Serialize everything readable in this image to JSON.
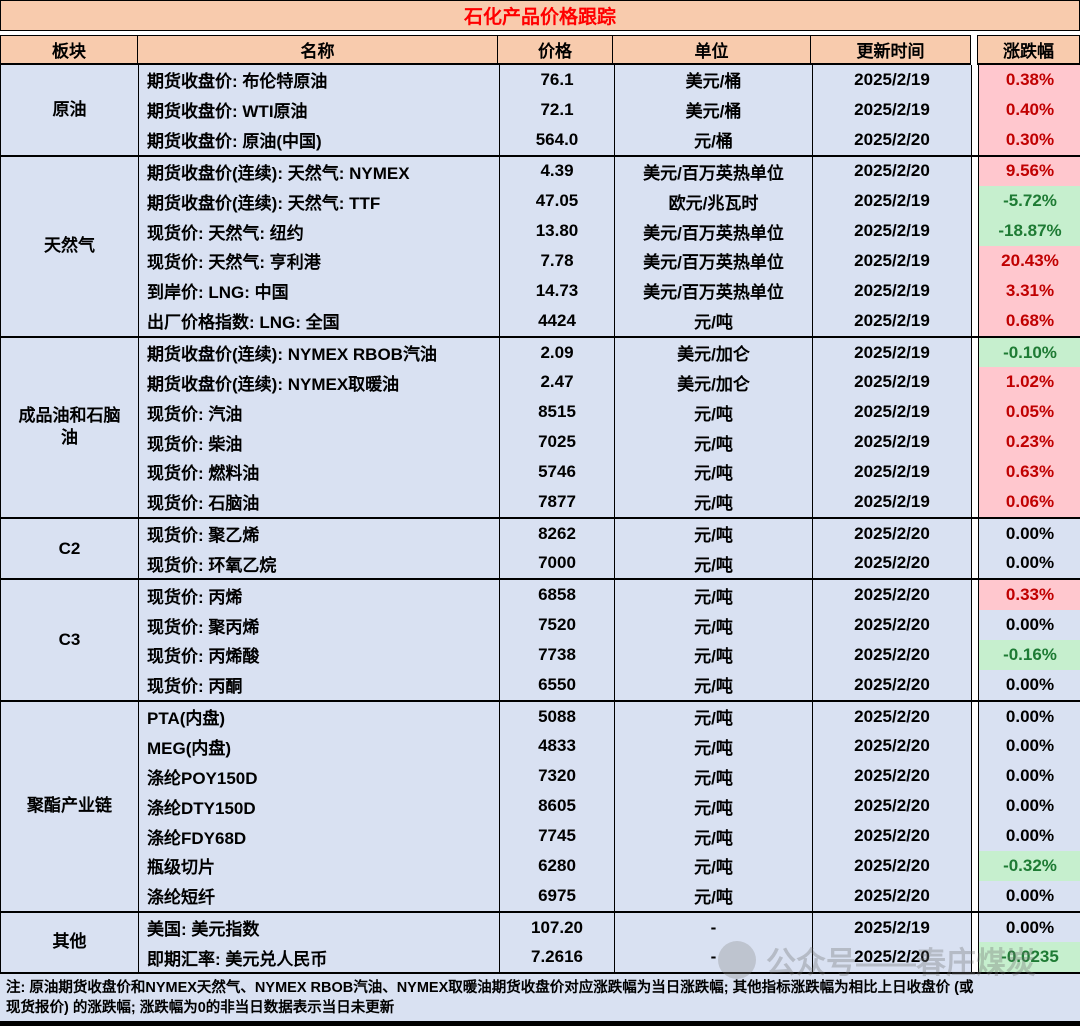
{
  "title": "石化产品价格跟踪",
  "columns": [
    "板块",
    "名称",
    "价格",
    "单位",
    "更新时间",
    "涨跌幅"
  ],
  "sections": [
    {
      "sector": "原油",
      "rows": [
        {
          "name": "期货收盘价: 布伦特原油",
          "price": "76.1",
          "unit": "美元/桶",
          "date": "2025/2/19",
          "change": "0.38%",
          "trend": "up"
        },
        {
          "name": "期货收盘价: WTI原油",
          "price": "72.1",
          "unit": "美元/桶",
          "date": "2025/2/19",
          "change": "0.40%",
          "trend": "up"
        },
        {
          "name": "期货收盘价: 原油(中国)",
          "price": "564.0",
          "unit": "元/桶",
          "date": "2025/2/20",
          "change": "0.30%",
          "trend": "up"
        }
      ]
    },
    {
      "sector": "天然气",
      "rows": [
        {
          "name": "期货收盘价(连续): 天然气: NYMEX",
          "price": "4.39",
          "unit": "美元/百万英热单位",
          "date": "2025/2/20",
          "change": "9.56%",
          "trend": "up"
        },
        {
          "name": "期货收盘价(连续): 天然气: TTF",
          "price": "47.05",
          "unit": "欧元/兆瓦时",
          "date": "2025/2/19",
          "change": "-5.72%",
          "trend": "down"
        },
        {
          "name": "现货价: 天然气: 纽约",
          "price": "13.80",
          "unit": "美元/百万英热单位",
          "date": "2025/2/19",
          "change": "-18.87%",
          "trend": "down"
        },
        {
          "name": "现货价: 天然气: 亨利港",
          "price": "7.78",
          "unit": "美元/百万英热单位",
          "date": "2025/2/19",
          "change": "20.43%",
          "trend": "up"
        },
        {
          "name": "到岸价: LNG: 中国",
          "price": "14.73",
          "unit": "美元/百万英热单位",
          "date": "2025/2/19",
          "change": "3.31%",
          "trend": "up"
        },
        {
          "name": "出厂价格指数: LNG: 全国",
          "price": "4424",
          "unit": "元/吨",
          "date": "2025/2/19",
          "change": "0.68%",
          "trend": "up"
        }
      ]
    },
    {
      "sector": "成品油和石脑油",
      "rows": [
        {
          "name": "期货收盘价(连续): NYMEX RBOB汽油",
          "price": "2.09",
          "unit": "美元/加仑",
          "date": "2025/2/19",
          "change": "-0.10%",
          "trend": "down"
        },
        {
          "name": "期货收盘价(连续): NYMEX取暖油",
          "price": "2.47",
          "unit": "美元/加仑",
          "date": "2025/2/19",
          "change": "1.02%",
          "trend": "up"
        },
        {
          "name": "现货价: 汽油",
          "price": "8515",
          "unit": "元/吨",
          "date": "2025/2/19",
          "change": "0.05%",
          "trend": "up"
        },
        {
          "name": "现货价: 柴油",
          "price": "7025",
          "unit": "元/吨",
          "date": "2025/2/19",
          "change": "0.23%",
          "trend": "up"
        },
        {
          "name": "现货价: 燃料油",
          "price": "5746",
          "unit": "元/吨",
          "date": "2025/2/19",
          "change": "0.63%",
          "trend": "up"
        },
        {
          "name": "现货价: 石脑油",
          "price": "7877",
          "unit": "元/吨",
          "date": "2025/2/19",
          "change": "0.06%",
          "trend": "up"
        }
      ]
    },
    {
      "sector": "C2",
      "rows": [
        {
          "name": "现货价: 聚乙烯",
          "price": "8262",
          "unit": "元/吨",
          "date": "2025/2/20",
          "change": "0.00%",
          "trend": "flat"
        },
        {
          "name": "现货价: 环氧乙烷",
          "price": "7000",
          "unit": "元/吨",
          "date": "2025/2/20",
          "change": "0.00%",
          "trend": "flat"
        }
      ]
    },
    {
      "sector": "C3",
      "rows": [
        {
          "name": "现货价: 丙烯",
          "price": "6858",
          "unit": "元/吨",
          "date": "2025/2/20",
          "change": "0.33%",
          "trend": "up"
        },
        {
          "name": "现货价: 聚丙烯",
          "price": "7520",
          "unit": "元/吨",
          "date": "2025/2/20",
          "change": "0.00%",
          "trend": "flat"
        },
        {
          "name": "现货价: 丙烯酸",
          "price": "7738",
          "unit": "元/吨",
          "date": "2025/2/20",
          "change": "-0.16%",
          "trend": "down"
        },
        {
          "name": "现货价: 丙酮",
          "price": "6550",
          "unit": "元/吨",
          "date": "2025/2/20",
          "change": "0.00%",
          "trend": "flat"
        }
      ]
    },
    {
      "sector": "聚酯产业链",
      "rows": [
        {
          "name": "PTA(内盘)",
          "price": "5088",
          "unit": "元/吨",
          "date": "2025/2/20",
          "change": "0.00%",
          "trend": "flat"
        },
        {
          "name": "MEG(内盘)",
          "price": "4833",
          "unit": "元/吨",
          "date": "2025/2/20",
          "change": "0.00%",
          "trend": "flat"
        },
        {
          "name": "涤纶POY150D",
          "price": "7320",
          "unit": "元/吨",
          "date": "2025/2/20",
          "change": "0.00%",
          "trend": "flat"
        },
        {
          "name": "涤纶DTY150D",
          "price": "8605",
          "unit": "元/吨",
          "date": "2025/2/20",
          "change": "0.00%",
          "trend": "flat"
        },
        {
          "name": "涤纶FDY68D",
          "price": "7745",
          "unit": "元/吨",
          "date": "2025/2/20",
          "change": "0.00%",
          "trend": "flat"
        },
        {
          "name": "瓶级切片",
          "price": "6280",
          "unit": "元/吨",
          "date": "2025/2/20",
          "change": "-0.32%",
          "trend": "down"
        },
        {
          "name": "涤纶短纤",
          "price": "6975",
          "unit": "元/吨",
          "date": "2025/2/20",
          "change": "0.00%",
          "trend": "flat"
        }
      ]
    },
    {
      "sector": "其他",
      "rows": [
        {
          "name": "美国: 美元指数",
          "price": "107.20",
          "unit": "-",
          "date": "2025/2/19",
          "change": "0.00%",
          "trend": "flat"
        },
        {
          "name": "即期汇率: 美元兑人民币",
          "price": "7.2616",
          "unit": "-",
          "date": "2025/2/20",
          "change": "-0.0235",
          "trend": "down"
        }
      ]
    }
  ],
  "note": {
    "line1": "注: 原油期货收盘价和NYMEX天然气、NYMEX RBOB汽油、NYMEX取暖油期货收盘价对应涨跌幅为当日涨跌幅; 其他指标涨跌幅为相比上日收盘价 (或",
    "line2": "现货报价) 的涨跌幅; 涨跌幅为0的非当日数据表示当日未更新"
  },
  "watermark": {
    "text": "公众号——春庄煤炭"
  },
  "colors": {
    "header-bg": "#F8CBAD",
    "row-bg": "#D9E1F2",
    "up-bg": "#FFC7CE",
    "up-text": "#C00000",
    "down-bg": "#C6EFCE",
    "down-text": "#1E7B34",
    "title-text": "#FF0000",
    "border": "#000000"
  }
}
